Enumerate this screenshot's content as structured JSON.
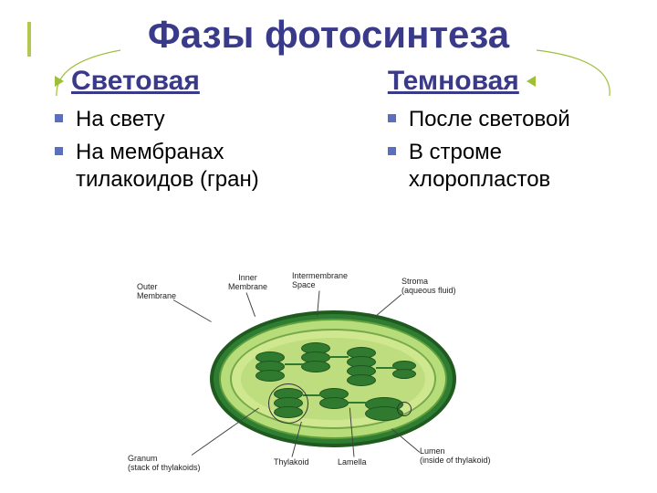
{
  "title": {
    "text": "Фазы фотосинтеза",
    "color": "#3a3a8a",
    "fontsize": 42
  },
  "accent_bar_color": "#b2c84f",
  "arrow_color": "#9dbf3a",
  "subtitle_fontsize": 30,
  "bullet_fontsize": 24,
  "bullet_mark_color": "#5a6fbf",
  "left": {
    "subtitle": "Световая",
    "subtitle_color": "#3a3a8a",
    "items": [
      "На свету",
      "На мембранах тилакоидов (гран)"
    ]
  },
  "right": {
    "subtitle": "Темновая",
    "subtitle_color": "#3a3a8a",
    "items": [
      "После световой",
      "В строме хлоропластов"
    ]
  },
  "diagram": {
    "type": "infographic",
    "outer_membrane_color": "#2e7d32",
    "outer_border_color": "#1f5a1f",
    "intermembrane_color": "#b6dd7a",
    "inner_membrane_color": "#cfe88f",
    "stroma_color": "#a8d06a",
    "granum_color": "#2f7a2f",
    "label_fontsize": 9,
    "labels": {
      "outer": "Outer\nMembrane",
      "inner": "Inner\nMembrane",
      "inter": "Intermembrane\nSpace",
      "stroma": "Stroma\n(aqueous fluid)",
      "granum": "Granum\n(stack of thylakoids)",
      "thylakoid": "Thylakoid",
      "lamella": "Lamella",
      "lumen": "Lumen\n(inside of thylakoid)"
    }
  }
}
